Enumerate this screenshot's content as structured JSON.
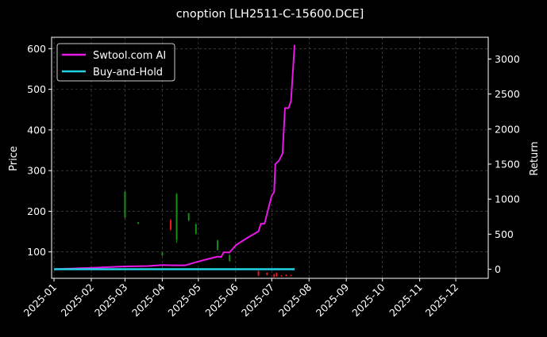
{
  "chart_data": {
    "type": "line",
    "title": "cnoption [LH2511-C-15600.DCE]",
    "ylabel": "Price",
    "y2label": "Return",
    "x_ticks": [
      "2025-01",
      "2025-02",
      "2025-03",
      "2025-04",
      "2025-05",
      "2025-06",
      "2025-07",
      "2025-08",
      "2025-09",
      "2025-10",
      "2025-11",
      "2025-12"
    ],
    "xlim": [
      "2024-12-30",
      "2025-12-28"
    ],
    "y_ticks": [
      100,
      200,
      300,
      400,
      500,
      600
    ],
    "ylim": [
      35,
      628
    ],
    "y2_ticks": [
      0,
      500,
      1000,
      1500,
      2000,
      2500,
      3000
    ],
    "y2lim": [
      -130,
      3310
    ],
    "grid": true,
    "legend_position": "top-left",
    "colors": {
      "background": "#000000",
      "strategy": "#e818e8",
      "buy_hold": "#22d3e6",
      "candle_up": "#1a8c1a",
      "candle_down": "#e81818"
    },
    "series": [
      {
        "name": "Swtool.com AI",
        "axis": "right",
        "x": [
          "2025-01-01",
          "2025-02-01",
          "2025-03-01",
          "2025-03-20",
          "2025-04-01",
          "2025-04-10",
          "2025-04-20",
          "2025-04-25",
          "2025-05-01",
          "2025-05-10",
          "2025-05-17",
          "2025-05-20",
          "2025-05-22",
          "2025-05-27",
          "2025-06-01",
          "2025-06-10",
          "2025-06-20",
          "2025-06-22",
          "2025-06-25",
          "2025-07-01",
          "2025-07-03",
          "2025-07-04",
          "2025-07-07",
          "2025-07-10",
          "2025-07-12",
          "2025-07-15",
          "2025-07-17",
          "2025-07-20"
        ],
        "values": [
          0,
          20,
          40,
          45,
          60,
          55,
          55,
          80,
          110,
          150,
          180,
          175,
          240,
          240,
          340,
          440,
          540,
          650,
          650,
          1050,
          1100,
          1500,
          1550,
          1650,
          2300,
          2300,
          2400,
          3200
        ]
      },
      {
        "name": "Buy-and-Hold",
        "axis": "right",
        "x": [
          "2025-01-01",
          "2025-07-20"
        ],
        "values": [
          0,
          0
        ]
      }
    ],
    "candles": [
      {
        "date": "2025-03-01",
        "open": 185,
        "close": 248,
        "low": 182,
        "high": 250
      },
      {
        "date": "2025-03-12",
        "open": 170,
        "close": 173,
        "low": 168,
        "high": 174
      },
      {
        "date": "2025-04-01",
        "open": 92,
        "close": 98,
        "low": 90,
        "high": 99
      },
      {
        "date": "2025-04-08",
        "open": 178,
        "close": 155,
        "low": 152,
        "high": 181
      },
      {
        "date": "2025-04-13",
        "open": 130,
        "close": 242,
        "low": 122,
        "high": 245
      },
      {
        "date": "2025-04-23",
        "open": 178,
        "close": 195,
        "low": 175,
        "high": 196
      },
      {
        "date": "2025-04-29",
        "open": 145,
        "close": 168,
        "low": 142,
        "high": 170
      },
      {
        "date": "2025-05-17",
        "open": 105,
        "close": 128,
        "low": 103,
        "high": 130
      },
      {
        "date": "2025-05-27",
        "open": 78,
        "close": 92,
        "low": 76,
        "high": 94
      },
      {
        "date": "2025-06-20",
        "open": 52,
        "close": 42,
        "low": 40,
        "high": 55
      },
      {
        "date": "2025-06-27",
        "open": 48,
        "close": 44,
        "low": 42,
        "high": 50
      },
      {
        "date": "2025-07-03",
        "open": 45,
        "close": 38,
        "low": 37,
        "high": 46
      },
      {
        "date": "2025-07-05",
        "open": 48,
        "close": 40,
        "low": 39,
        "high": 50
      },
      {
        "date": "2025-07-09",
        "open": 42,
        "close": 40,
        "low": 39,
        "high": 43
      },
      {
        "date": "2025-07-13",
        "open": 44,
        "close": 41,
        "low": 40,
        "high": 45
      },
      {
        "date": "2025-07-17",
        "open": 43,
        "close": 41,
        "low": 40,
        "high": 44
      }
    ]
  }
}
